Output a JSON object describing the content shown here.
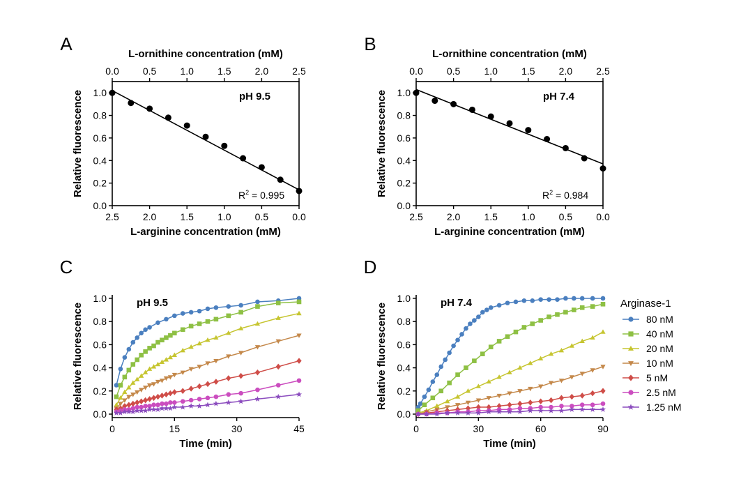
{
  "chart_data": [
    {
      "panel": "A",
      "type": "scatter",
      "annotation": "pH 9.5",
      "r2_label": "R",
      "r2_sup": "2",
      "r2_value": " = 0.995",
      "xlabel": "L-arginine concentration (mM)",
      "x2label": "L-ornithine concentration (mM)",
      "ylabel": "Relative fluorescence",
      "xlim": [
        2.5,
        0.0
      ],
      "x2lim": [
        0.0,
        2.5
      ],
      "ylim": [
        0.0,
        1.1
      ],
      "xticks": [
        "2.5",
        "2.0",
        "1.5",
        "1.0",
        "0.5",
        "0.0"
      ],
      "x2ticks": [
        "0.0",
        "0.5",
        "1.0",
        "1.5",
        "2.0",
        "2.5"
      ],
      "yticks": [
        "0.0",
        "0.2",
        "0.4",
        "0.6",
        "0.8",
        "1.0"
      ],
      "x": [
        2.5,
        2.25,
        2.0,
        1.75,
        1.5,
        1.25,
        1.0,
        0.75,
        0.5,
        0.25,
        0.0
      ],
      "y": [
        1.0,
        0.91,
        0.86,
        0.78,
        0.71,
        0.61,
        0.53,
        0.42,
        0.34,
        0.23,
        0.13
      ],
      "fit": {
        "x": [
          2.5,
          0.0
        ],
        "y": [
          1.02,
          0.14
        ]
      },
      "grid": false
    },
    {
      "panel": "B",
      "type": "scatter",
      "annotation": "pH 7.4",
      "r2_label": "R",
      "r2_sup": "2",
      "r2_value": " = 0.984",
      "xlabel": "L-arginine concentration (mM)",
      "x2label": "L-ornithine concentration (mM)",
      "ylabel": "Relative fluorescence",
      "xlim": [
        2.5,
        0.0
      ],
      "x2lim": [
        0.0,
        2.5
      ],
      "ylim": [
        0.0,
        1.1
      ],
      "xticks": [
        "2.5",
        "2.0",
        "1.5",
        "1.0",
        "0.5",
        "0.0"
      ],
      "x2ticks": [
        "0.0",
        "0.5",
        "1.0",
        "1.5",
        "2.0",
        "2.5"
      ],
      "yticks": [
        "0.0",
        "0.2",
        "0.4",
        "0.6",
        "0.8",
        "1.0"
      ],
      "x": [
        2.5,
        2.25,
        2.0,
        1.75,
        1.5,
        1.25,
        1.0,
        0.75,
        0.5,
        0.25,
        0.0
      ],
      "y": [
        1.0,
        0.93,
        0.9,
        0.85,
        0.79,
        0.73,
        0.67,
        0.59,
        0.51,
        0.42,
        0.33
      ],
      "fit": {
        "x": [
          2.5,
          0.0
        ],
        "y": [
          1.03,
          0.37
        ]
      },
      "grid": false
    },
    {
      "panel": "C",
      "type": "line",
      "annotation": "pH 9.5",
      "xlabel": "Time (min)",
      "ylabel": "Relative fluorescence",
      "xlim": [
        0,
        45
      ],
      "ylim": [
        -0.03,
        1.03
      ],
      "xticks": [
        "0",
        "15",
        "30",
        "45"
      ],
      "yticks": [
        "0.0",
        "0.2",
        "0.4",
        "0.6",
        "0.8",
        "1.0"
      ],
      "grid": false,
      "series": [
        {
          "color": "#4a7fbf",
          "marker": "circle",
          "x": [
            1,
            2,
            3,
            4,
            5,
            6,
            7,
            8,
            9,
            11,
            13,
            15,
            17,
            19,
            21,
            23,
            25,
            28,
            31,
            35,
            40,
            45
          ],
          "y": [
            0.25,
            0.39,
            0.49,
            0.56,
            0.62,
            0.66,
            0.7,
            0.73,
            0.75,
            0.79,
            0.82,
            0.85,
            0.87,
            0.88,
            0.89,
            0.91,
            0.92,
            0.93,
            0.94,
            0.97,
            0.98,
            1.0
          ]
        },
        {
          "color": "#8ec044",
          "marker": "square",
          "x": [
            1,
            2,
            3,
            4,
            5,
            6,
            7,
            8,
            9,
            10,
            11,
            12,
            13,
            14,
            15,
            17,
            19,
            21,
            23,
            25,
            28,
            31,
            35,
            40,
            45
          ],
          "y": [
            0.15,
            0.25,
            0.32,
            0.38,
            0.43,
            0.47,
            0.51,
            0.54,
            0.57,
            0.59,
            0.62,
            0.64,
            0.66,
            0.68,
            0.7,
            0.73,
            0.76,
            0.78,
            0.8,
            0.82,
            0.85,
            0.88,
            0.93,
            0.96,
            0.97
          ]
        },
        {
          "color": "#c6c530",
          "marker": "triangle-up",
          "x": [
            1,
            2,
            3,
            4,
            5,
            6,
            7,
            8,
            9,
            10,
            11,
            12,
            13,
            14,
            15,
            17,
            19,
            21,
            23,
            25,
            28,
            31,
            35,
            40,
            45
          ],
          "y": [
            0.08,
            0.14,
            0.19,
            0.23,
            0.27,
            0.3,
            0.33,
            0.36,
            0.39,
            0.41,
            0.43,
            0.45,
            0.47,
            0.49,
            0.51,
            0.55,
            0.58,
            0.61,
            0.64,
            0.66,
            0.7,
            0.74,
            0.78,
            0.83,
            0.87
          ]
        },
        {
          "color": "#c4884a",
          "marker": "triangle-down",
          "x": [
            1,
            2,
            3,
            4,
            5,
            6,
            7,
            8,
            9,
            10,
            11,
            12,
            13,
            14,
            15,
            17,
            19,
            21,
            23,
            25,
            28,
            31,
            35,
            40,
            45
          ],
          "y": [
            0.05,
            0.09,
            0.12,
            0.15,
            0.17,
            0.19,
            0.21,
            0.23,
            0.25,
            0.26,
            0.28,
            0.29,
            0.31,
            0.32,
            0.34,
            0.36,
            0.39,
            0.41,
            0.44,
            0.46,
            0.5,
            0.53,
            0.58,
            0.63,
            0.68
          ]
        },
        {
          "color": "#cf4d48",
          "marker": "diamond",
          "x": [
            1,
            2,
            3,
            4,
            5,
            6,
            7,
            8,
            9,
            10,
            11,
            12,
            13,
            14,
            15,
            17,
            19,
            21,
            23,
            25,
            28,
            31,
            35,
            40,
            45
          ],
          "y": [
            0.04,
            0.05,
            0.07,
            0.08,
            0.09,
            0.1,
            0.11,
            0.12,
            0.13,
            0.14,
            0.15,
            0.16,
            0.17,
            0.18,
            0.19,
            0.2,
            0.22,
            0.24,
            0.26,
            0.28,
            0.31,
            0.33,
            0.36,
            0.41,
            0.46
          ]
        },
        {
          "color": "#cb4dbf",
          "marker": "circle",
          "x": [
            1,
            2,
            3,
            4,
            5,
            6,
            7,
            8,
            9,
            10,
            11,
            12,
            13,
            14,
            15,
            17,
            19,
            21,
            23,
            25,
            28,
            31,
            35,
            40,
            45
          ],
          "y": [
            0.02,
            0.03,
            0.04,
            0.04,
            0.05,
            0.06,
            0.06,
            0.07,
            0.07,
            0.08,
            0.08,
            0.09,
            0.09,
            0.1,
            0.1,
            0.11,
            0.12,
            0.13,
            0.14,
            0.15,
            0.17,
            0.18,
            0.21,
            0.25,
            0.29
          ]
        },
        {
          "color": "#8b4cbe",
          "marker": "star",
          "x": [
            1,
            2,
            3,
            4,
            5,
            6,
            7,
            8,
            9,
            10,
            11,
            12,
            13,
            14,
            15,
            17,
            19,
            21,
            23,
            25,
            28,
            31,
            35,
            40,
            45
          ],
          "y": [
            0.01,
            0.01,
            0.02,
            0.02,
            0.02,
            0.03,
            0.03,
            0.03,
            0.04,
            0.04,
            0.04,
            0.05,
            0.05,
            0.05,
            0.06,
            0.06,
            0.07,
            0.07,
            0.08,
            0.09,
            0.1,
            0.11,
            0.13,
            0.15,
            0.17
          ]
        }
      ]
    },
    {
      "panel": "D",
      "type": "line",
      "annotation": "pH 7.4",
      "xlabel": "Time (min)",
      "ylabel": "Relative fluorescence",
      "xlim": [
        0,
        90
      ],
      "ylim": [
        -0.03,
        1.03
      ],
      "xticks": [
        "0",
        "30",
        "60",
        "90"
      ],
      "yticks": [
        "0.0",
        "0.2",
        "0.4",
        "0.6",
        "0.8",
        "1.0"
      ],
      "grid": false,
      "legend": {
        "title": "Arginase-1",
        "position": "right"
      },
      "series": [
        {
          "name": "80 nM",
          "color": "#4a7fbf",
          "marker": "circle",
          "x": [
            1,
            2,
            4,
            6,
            8,
            10,
            12,
            14,
            16,
            18,
            20,
            22,
            24,
            26,
            28,
            30,
            32,
            34,
            36,
            40,
            44,
            48,
            52,
            56,
            60,
            64,
            68,
            72,
            76,
            80,
            85,
            90
          ],
          "y": [
            0.06,
            0.09,
            0.15,
            0.21,
            0.28,
            0.34,
            0.41,
            0.47,
            0.53,
            0.59,
            0.64,
            0.69,
            0.74,
            0.78,
            0.81,
            0.84,
            0.88,
            0.9,
            0.92,
            0.94,
            0.96,
            0.97,
            0.98,
            0.98,
            0.99,
            0.99,
            0.99,
            1.0,
            1.0,
            1.0,
            1.0,
            1.0
          ]
        },
        {
          "name": "40 nM",
          "color": "#8ec044",
          "marker": "square",
          "x": [
            1,
            4,
            8,
            12,
            16,
            20,
            24,
            28,
            32,
            36,
            40,
            44,
            48,
            52,
            56,
            60,
            64,
            68,
            72,
            76,
            80,
            85,
            90
          ],
          "y": [
            0.03,
            0.08,
            0.14,
            0.2,
            0.27,
            0.34,
            0.4,
            0.46,
            0.52,
            0.58,
            0.63,
            0.67,
            0.71,
            0.75,
            0.78,
            0.81,
            0.84,
            0.86,
            0.88,
            0.9,
            0.92,
            0.93,
            0.95
          ]
        },
        {
          "name": "20 nM",
          "color": "#c6c530",
          "marker": "triangle-up",
          "x": [
            1,
            5,
            10,
            15,
            20,
            25,
            30,
            35,
            40,
            45,
            50,
            55,
            60,
            65,
            70,
            75,
            80,
            85,
            90
          ],
          "y": [
            0.01,
            0.03,
            0.07,
            0.11,
            0.15,
            0.2,
            0.24,
            0.28,
            0.32,
            0.36,
            0.4,
            0.44,
            0.48,
            0.52,
            0.55,
            0.59,
            0.63,
            0.66,
            0.71
          ]
        },
        {
          "name": "10 nM",
          "color": "#c4884a",
          "marker": "triangle-down",
          "x": [
            1,
            5,
            10,
            15,
            20,
            25,
            30,
            35,
            40,
            45,
            50,
            55,
            60,
            65,
            70,
            75,
            80,
            85,
            90
          ],
          "y": [
            0.0,
            0.02,
            0.04,
            0.06,
            0.08,
            0.1,
            0.12,
            0.14,
            0.16,
            0.18,
            0.2,
            0.22,
            0.24,
            0.27,
            0.29,
            0.32,
            0.35,
            0.38,
            0.41
          ]
        },
        {
          "name": "5 nM",
          "color": "#cf4d48",
          "marker": "diamond",
          "x": [
            1,
            5,
            10,
            15,
            20,
            25,
            30,
            35,
            40,
            45,
            50,
            55,
            60,
            65,
            70,
            75,
            80,
            85,
            90
          ],
          "y": [
            0.0,
            0.01,
            0.02,
            0.03,
            0.04,
            0.05,
            0.06,
            0.06,
            0.07,
            0.08,
            0.09,
            0.1,
            0.11,
            0.12,
            0.14,
            0.15,
            0.16,
            0.18,
            0.2
          ]
        },
        {
          "name": "2.5 nM",
          "color": "#cb4dbf",
          "marker": "circle",
          "x": [
            1,
            5,
            10,
            15,
            20,
            25,
            30,
            35,
            40,
            45,
            50,
            55,
            60,
            65,
            70,
            75,
            80,
            85,
            90
          ],
          "y": [
            0.0,
            0.0,
            0.01,
            0.01,
            0.02,
            0.02,
            0.03,
            0.03,
            0.04,
            0.04,
            0.05,
            0.05,
            0.06,
            0.06,
            0.07,
            0.07,
            0.08,
            0.08,
            0.09
          ]
        },
        {
          "name": "1.25 nM",
          "color": "#8b4cbe",
          "marker": "star",
          "x": [
            1,
            5,
            10,
            15,
            20,
            25,
            30,
            35,
            40,
            45,
            50,
            55,
            60,
            65,
            70,
            75,
            80,
            85,
            90
          ],
          "y": [
            0.0,
            0.0,
            0.0,
            0.01,
            0.01,
            0.01,
            0.01,
            0.02,
            0.02,
            0.02,
            0.02,
            0.03,
            0.03,
            0.03,
            0.03,
            0.04,
            0.04,
            0.04,
            0.04
          ]
        }
      ]
    }
  ]
}
